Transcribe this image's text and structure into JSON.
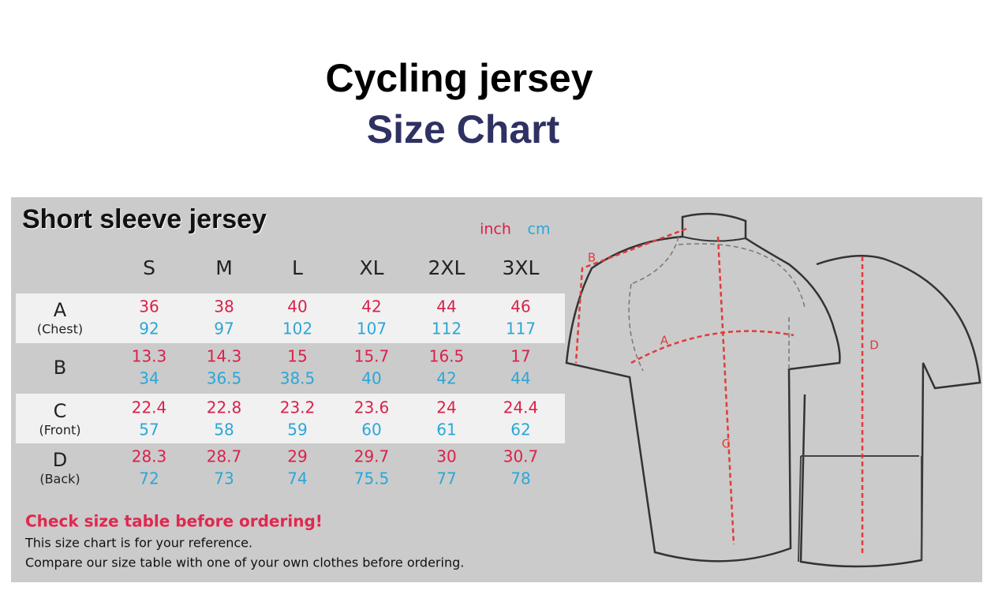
{
  "header": {
    "title": "Cycling jersey",
    "subtitle": "Size Chart"
  },
  "panel": {
    "title": "Short sleeve jersey",
    "units": [
      "inch",
      "cm"
    ]
  },
  "table": {
    "columns": [
      "S",
      "M",
      "L",
      "XL",
      "2XL",
      "3XL"
    ],
    "rows": [
      {
        "label": "A",
        "sublabel": "(Chest)",
        "inch": [
          "36",
          "38",
          "40",
          "42",
          "44",
          "46"
        ],
        "cm": [
          "92",
          "97",
          "102",
          "107",
          "112",
          "117"
        ]
      },
      {
        "label": "B",
        "inch": [
          "13.3",
          "14.3",
          "15",
          "15.7",
          "16.5",
          "17"
        ],
        "cm": [
          "34",
          "36.5",
          "38.5",
          "40",
          "42",
          "44"
        ]
      },
      {
        "label": "C",
        "sublabel": "(Front)",
        "inch": [
          "22.4",
          "22.8",
          "23.2",
          "23.6",
          "24",
          "24.4"
        ],
        "cm": [
          "57",
          "58",
          "59",
          "60",
          "61",
          "62"
        ]
      },
      {
        "label": "D",
        "sublabel": "(Back)",
        "inch": [
          "28.3",
          "28.7",
          "29",
          "29.7",
          "30",
          "30.7"
        ],
        "cm": [
          "72",
          "73",
          "74",
          "75.5",
          "77",
          "78"
        ]
      }
    ]
  },
  "notes": {
    "warning": "Check size table before ordering!",
    "lines": [
      "This size chart is for your reference.",
      "Compare our size table with one of your own clothes before ordering."
    ]
  },
  "diagram": {
    "labels": [
      "A",
      "B",
      "C",
      "D"
    ]
  }
}
